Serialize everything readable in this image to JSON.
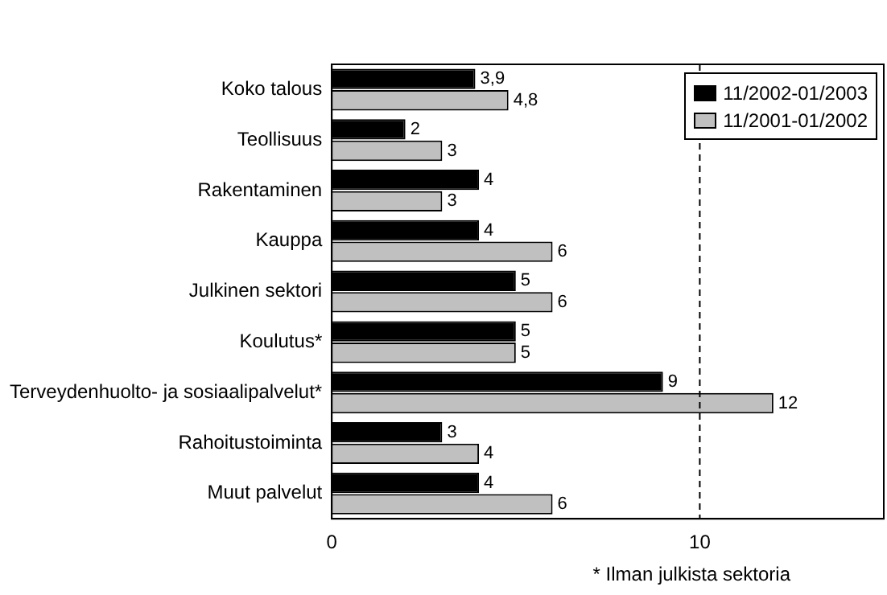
{
  "chart_data": {
    "type": "bar",
    "orientation": "horizontal",
    "categories": [
      "Koko talous",
      "Teollisuus",
      "Rakentaminen",
      "Kauppa",
      "Julkinen sektori",
      "Koulutus*",
      "Terveydenhuolto- ja sosiaalipalvelut*",
      "Rahoitustoiminta",
      "Muut palvelut"
    ],
    "series": [
      {
        "name": "11/2002-01/2003",
        "color": "#000000",
        "values": [
          3.9,
          2,
          4,
          4,
          5,
          5,
          9,
          3,
          4
        ],
        "value_labels": [
          "3,9",
          "2",
          "4",
          "4",
          "5",
          "5",
          "9",
          "3",
          "4"
        ]
      },
      {
        "name": "11/2001-01/2002",
        "color": "#c0c0c0",
        "values": [
          4.8,
          3,
          3,
          6,
          6,
          5,
          12,
          4,
          6
        ],
        "value_labels": [
          "4,8",
          "3",
          "3",
          "6",
          "6",
          "5",
          "12",
          "4",
          "6"
        ]
      }
    ],
    "xlim": [
      0,
      15
    ],
    "xticks": [
      0,
      10
    ],
    "grid": false,
    "legend": "top right",
    "ref_lines": [
      {
        "axis": "x",
        "value": 10,
        "color": "#000000",
        "line_style": "dashed"
      }
    ],
    "annotations": [
      "* Ilman julkista sektoria"
    ]
  }
}
